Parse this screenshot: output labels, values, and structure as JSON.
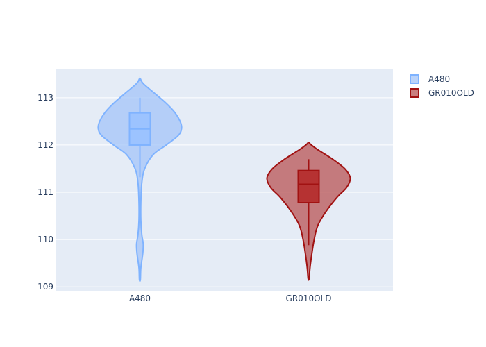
{
  "chart_data": {
    "type": "violin",
    "title": "",
    "xlabel": "",
    "ylabel": "",
    "categories": [
      "A480",
      "GR010OLD"
    ],
    "ylim": [
      108.9,
      113.6
    ],
    "yticks": [
      109,
      110,
      111,
      112,
      113
    ],
    "grid": true,
    "legend_position": "top-right",
    "series": [
      {
        "name": "A480",
        "category": "A480",
        "fill_color": "#a3c4f8",
        "line_color": "#7fb3ff",
        "box_fill": "#99c2ff",
        "min": 109.15,
        "max": 113.4,
        "box": {
          "lower_fence": 111.32,
          "q1": 112.0,
          "median": 112.34,
          "q3": 112.68,
          "upper_fence": 113.0
        },
        "density": [
          [
            109.15,
            0.01
          ],
          [
            109.4,
            0.02
          ],
          [
            109.7,
            0.06
          ],
          [
            109.9,
            0.07
          ],
          [
            110.1,
            0.04
          ],
          [
            110.4,
            0.02
          ],
          [
            110.8,
            0.02
          ],
          [
            111.2,
            0.04
          ],
          [
            111.5,
            0.1
          ],
          [
            111.8,
            0.28
          ],
          [
            112.0,
            0.55
          ],
          [
            112.2,
            0.8
          ],
          [
            112.35,
            0.87
          ],
          [
            112.5,
            0.84
          ],
          [
            112.7,
            0.72
          ],
          [
            112.9,
            0.53
          ],
          [
            113.1,
            0.3
          ],
          [
            113.3,
            0.07
          ],
          [
            113.4,
            0.01
          ]
        ]
      },
      {
        "name": "GR010OLD",
        "category": "GR010OLD",
        "fill_color": "#b85454",
        "line_color": "#a11212",
        "box_fill": "#b52a2a",
        "min": 109.17,
        "max": 112.05,
        "box": {
          "lower_fence": 109.88,
          "q1": 110.78,
          "median": 111.17,
          "q3": 111.46,
          "upper_fence": 111.7
        },
        "density": [
          [
            109.17,
            0.01
          ],
          [
            109.4,
            0.03
          ],
          [
            109.7,
            0.07
          ],
          [
            110.0,
            0.12
          ],
          [
            110.3,
            0.2
          ],
          [
            110.6,
            0.38
          ],
          [
            110.9,
            0.62
          ],
          [
            111.1,
            0.82
          ],
          [
            111.3,
            0.9
          ],
          [
            111.5,
            0.78
          ],
          [
            111.7,
            0.52
          ],
          [
            111.9,
            0.2
          ],
          [
            112.0,
            0.06
          ],
          [
            112.05,
            0.01
          ]
        ]
      }
    ]
  }
}
